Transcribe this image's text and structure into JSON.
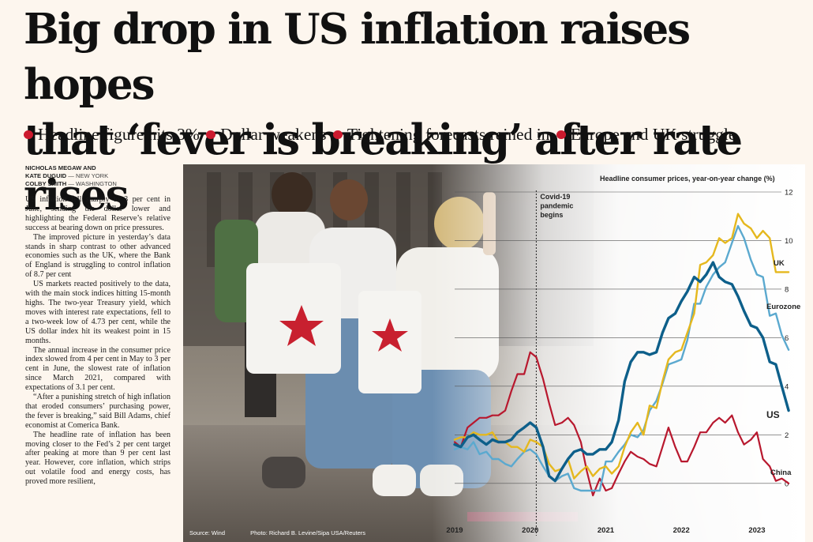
{
  "headline": {
    "line1": "Big drop in US inflation raises hopes",
    "line2": "that ‘fever is breaking’ after rate rises"
  },
  "bullets": [
    "Headline figure hits 3%",
    "Dollar weakens",
    "Tightening forecasts reined in",
    "Europe and UK struggle"
  ],
  "colors": {
    "bullet": "#cc1a2e",
    "us": "#0d5f8a",
    "eurozone": "#5ba9cf",
    "uk": "#e5b81e",
    "china": "#b8182e"
  },
  "byline": {
    "lines": [
      {
        "name": "NICHOLAS MEGAW AND",
        "loc": ""
      },
      {
        "name": "KATE DUGUID",
        "loc": "— NEW YORK"
      },
      {
        "name": "COLBY SMITH",
        "loc": "— WASHINGTON"
      }
    ]
  },
  "article": {
    "paragraphs": [
      "US inflation fell sharply to 3 per cent in June, sending the dollar lower and highlighting the Federal Reserve’s relative success at bearing down on price pressures.",
      "The improved picture in yesterday’s data stands in sharp contrast to other advanced economies such as the UK, where the Bank of England is struggling to control inflation of 8.7 per cent",
      "US markets reacted positively to the data, with the main stock indices hitting 15-month highs. The two-year Treasury yield, which moves with interest rate expectations, fell to a two-week low of 4.73 per cent, while the US dollar index hit its weakest point in 15 months.",
      "The annual increase in the consumer price index slowed from 4 per cent in May to 3 per cent in June, the slowest rate of inflation since March 2021, compared with expectations of 3.1 per cent.",
      "“After a punishing stretch of high inflation that eroded consumers’ purchasing power, the fever is breaking,” said Bill Adams, chief economist at Comerica Bank.",
      "The headline rate of inflation has been moving closer to the Fed’s 2 per cent target after peaking at more than 9 per cent last year. However, core inflation, which strips out volatile food and energy costs, has proved more resilient,"
    ]
  },
  "figure": {
    "source": "Source: Wind",
    "photo_credit": "Photo: Richard B. Levine/Sipa USA/Reuters"
  },
  "chart_data": {
    "type": "line",
    "title": "Headline consumer prices, year-on-year change (%)",
    "xlabel": "",
    "ylabel": "",
    "xlim": [
      2019.0,
      2023.45
    ],
    "ylim": [
      -0.3,
      12
    ],
    "x_ticks": [
      "2019",
      "2020",
      "2021",
      "2022",
      "2023"
    ],
    "y_ticks": [
      "0",
      "2",
      "4",
      "6",
      "8",
      "10",
      "12"
    ],
    "annotation": {
      "text": [
        "Covid-19",
        "pandemic",
        "begins"
      ],
      "x": 2020.08
    },
    "series": [
      {
        "name": "US",
        "x": [
          2019.0,
          2019.08,
          2019.17,
          2019.25,
          2019.33,
          2019.42,
          2019.5,
          2019.58,
          2019.67,
          2019.75,
          2019.83,
          2019.92,
          2020.0,
          2020.08,
          2020.17,
          2020.25,
          2020.33,
          2020.42,
          2020.5,
          2020.58,
          2020.67,
          2020.75,
          2020.83,
          2020.92,
          2021.0,
          2021.08,
          2021.17,
          2021.25,
          2021.33,
          2021.42,
          2021.5,
          2021.58,
          2021.67,
          2021.75,
          2021.83,
          2021.92,
          2022.0,
          2022.08,
          2022.17,
          2022.25,
          2022.33,
          2022.42,
          2022.5,
          2022.58,
          2022.67,
          2022.75,
          2022.83,
          2022.92,
          2023.0,
          2023.08,
          2023.17,
          2023.25,
          2023.33,
          2023.42
        ],
        "values": [
          1.6,
          1.5,
          1.9,
          2.0,
          1.8,
          1.6,
          1.8,
          1.7,
          1.7,
          1.8,
          2.1,
          2.3,
          2.5,
          2.3,
          1.5,
          0.3,
          0.1,
          0.6,
          1.0,
          1.3,
          1.4,
          1.2,
          1.2,
          1.4,
          1.4,
          1.7,
          2.6,
          4.2,
          5.0,
          5.4,
          5.4,
          5.3,
          5.4,
          6.2,
          6.8,
          7.0,
          7.5,
          7.9,
          8.5,
          8.3,
          8.6,
          9.1,
          8.5,
          8.3,
          8.2,
          7.7,
          7.1,
          6.5,
          6.4,
          6.0,
          5.0,
          4.9,
          4.0,
          3.0
        ]
      },
      {
        "name": "Eurozone",
        "x": [
          2019.0,
          2019.08,
          2019.17,
          2019.25,
          2019.33,
          2019.42,
          2019.5,
          2019.58,
          2019.67,
          2019.75,
          2019.83,
          2019.92,
          2020.0,
          2020.08,
          2020.17,
          2020.25,
          2020.33,
          2020.42,
          2020.5,
          2020.58,
          2020.67,
          2020.75,
          2020.83,
          2020.92,
          2021.0,
          2021.08,
          2021.17,
          2021.25,
          2021.33,
          2021.42,
          2021.5,
          2021.58,
          2021.67,
          2021.75,
          2021.83,
          2021.92,
          2022.0,
          2022.08,
          2022.17,
          2022.25,
          2022.33,
          2022.42,
          2022.5,
          2022.58,
          2022.67,
          2022.75,
          2022.83,
          2022.92,
          2023.0,
          2023.08,
          2023.17,
          2023.25,
          2023.33,
          2023.42
        ],
        "values": [
          1.4,
          1.5,
          1.4,
          1.7,
          1.2,
          1.3,
          1.0,
          1.0,
          0.8,
          0.7,
          1.0,
          1.3,
          1.4,
          1.2,
          0.7,
          0.3,
          0.1,
          0.3,
          0.4,
          -0.2,
          -0.3,
          -0.3,
          -0.3,
          -0.3,
          0.9,
          0.9,
          1.3,
          1.6,
          2.0,
          1.9,
          2.2,
          3.0,
          3.4,
          4.1,
          4.9,
          5.0,
          5.1,
          5.9,
          7.4,
          7.4,
          8.1,
          8.6,
          8.9,
          9.1,
          9.9,
          10.6,
          10.1,
          9.2,
          8.6,
          8.5,
          6.9,
          7.0,
          6.1,
          5.5
        ]
      },
      {
        "name": "UK",
        "x": [
          2019.0,
          2019.08,
          2019.17,
          2019.25,
          2019.33,
          2019.42,
          2019.5,
          2019.58,
          2019.67,
          2019.75,
          2019.83,
          2019.92,
          2020.0,
          2020.08,
          2020.17,
          2020.25,
          2020.33,
          2020.42,
          2020.5,
          2020.58,
          2020.67,
          2020.75,
          2020.83,
          2020.92,
          2021.0,
          2021.08,
          2021.17,
          2021.25,
          2021.33,
          2021.42,
          2021.5,
          2021.58,
          2021.67,
          2021.75,
          2021.83,
          2021.92,
          2022.0,
          2022.08,
          2022.17,
          2022.25,
          2022.33,
          2022.42,
          2022.5,
          2022.58,
          2022.67,
          2022.75,
          2022.83,
          2022.92,
          2023.0,
          2023.08,
          2023.17,
          2023.25,
          2023.33,
          2023.42
        ],
        "values": [
          1.8,
          1.9,
          1.9,
          2.1,
          2.0,
          2.0,
          2.1,
          1.7,
          1.7,
          1.5,
          1.5,
          1.3,
          1.8,
          1.7,
          1.5,
          0.8,
          0.5,
          0.6,
          1.0,
          0.2,
          0.5,
          0.7,
          0.3,
          0.6,
          0.7,
          0.4,
          0.7,
          1.5,
          2.1,
          2.5,
          2.0,
          3.2,
          3.1,
          4.2,
          5.1,
          5.4,
          5.5,
          6.2,
          7.0,
          9.0,
          9.1,
          9.4,
          10.1,
          9.9,
          10.1,
          11.1,
          10.7,
          10.5,
          10.1,
          10.4,
          10.1,
          8.7,
          8.7,
          8.7
        ]
      },
      {
        "name": "China",
        "x": [
          2019.0,
          2019.08,
          2019.17,
          2019.25,
          2019.33,
          2019.42,
          2019.5,
          2019.58,
          2019.67,
          2019.75,
          2019.83,
          2019.92,
          2020.0,
          2020.08,
          2020.17,
          2020.25,
          2020.33,
          2020.42,
          2020.5,
          2020.58,
          2020.67,
          2020.75,
          2020.83,
          2020.92,
          2021.0,
          2021.08,
          2021.17,
          2021.25,
          2021.33,
          2021.42,
          2021.5,
          2021.58,
          2021.67,
          2021.75,
          2021.83,
          2021.92,
          2022.0,
          2022.08,
          2022.17,
          2022.25,
          2022.33,
          2022.42,
          2022.5,
          2022.58,
          2022.67,
          2022.75,
          2022.83,
          2022.92,
          2023.0,
          2023.08,
          2023.17,
          2023.25,
          2023.33,
          2023.42
        ],
        "values": [
          1.7,
          1.5,
          2.3,
          2.5,
          2.7,
          2.7,
          2.8,
          2.8,
          3.0,
          3.8,
          4.5,
          4.5,
          5.4,
          5.2,
          4.3,
          3.3,
          2.4,
          2.5,
          2.7,
          2.4,
          1.7,
          0.5,
          -0.5,
          0.2,
          -0.3,
          -0.2,
          0.4,
          0.9,
          1.3,
          1.1,
          1.0,
          0.8,
          0.7,
          1.5,
          2.3,
          1.5,
          0.9,
          0.9,
          1.5,
          2.1,
          2.1,
          2.5,
          2.7,
          2.5,
          2.8,
          2.1,
          1.6,
          1.8,
          2.1,
          1.0,
          0.7,
          0.1,
          0.2,
          0.0
        ]
      }
    ]
  }
}
